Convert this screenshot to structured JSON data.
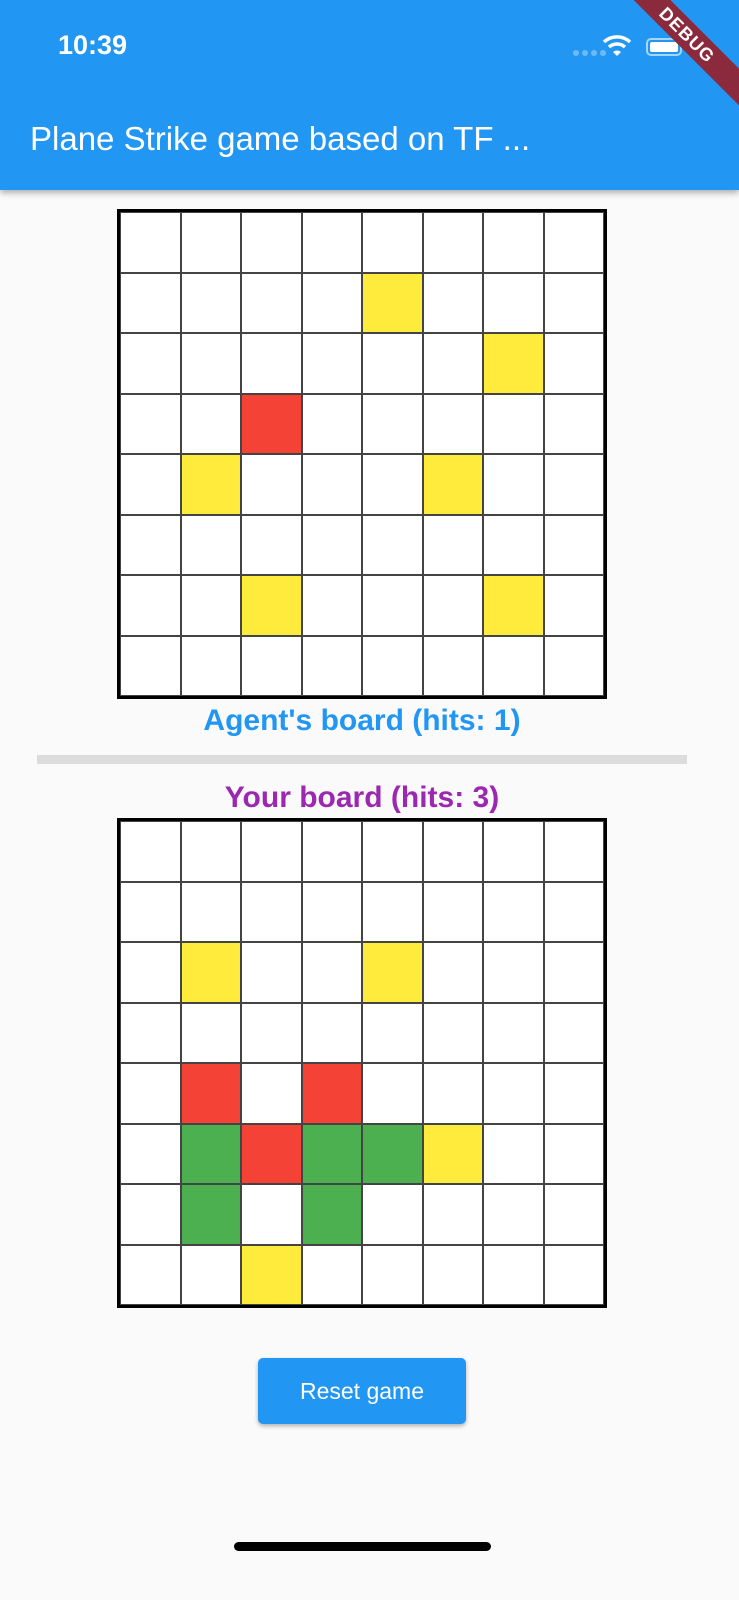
{
  "status_bar": {
    "time": "10:39"
  },
  "app_bar": {
    "title": "Plane Strike game based on TF ...",
    "debug_banner": "DEBUG",
    "color": "#2196f3"
  },
  "agent_board": {
    "label": "Agent's board (hits: 1)",
    "label_color": "#2196f3",
    "cells": [
      "wwwwwwww",
      "wwwwywww",
      "wwwwwwyw",
      "wwrwwwww",
      "wywwwyww",
      "wwwwwwww",
      "wwywwwyw",
      "wwwwwwww"
    ]
  },
  "your_board": {
    "label": "Your board (hits: 3)",
    "label_color": "#9c27b0",
    "cells": [
      "wwwwwwww",
      "wwwwwwww",
      "wywwywww",
      "wwwwwwww",
      "wrwrwwww",
      "wgrggyww",
      "wgwgwwww",
      "wwywwwww"
    ]
  },
  "cell_colors": {
    "w": "#ffffff",
    "y": "#ffeb3b",
    "r": "#f44336",
    "g": "#4caf50"
  },
  "reset_button": {
    "label": "Reset game"
  }
}
